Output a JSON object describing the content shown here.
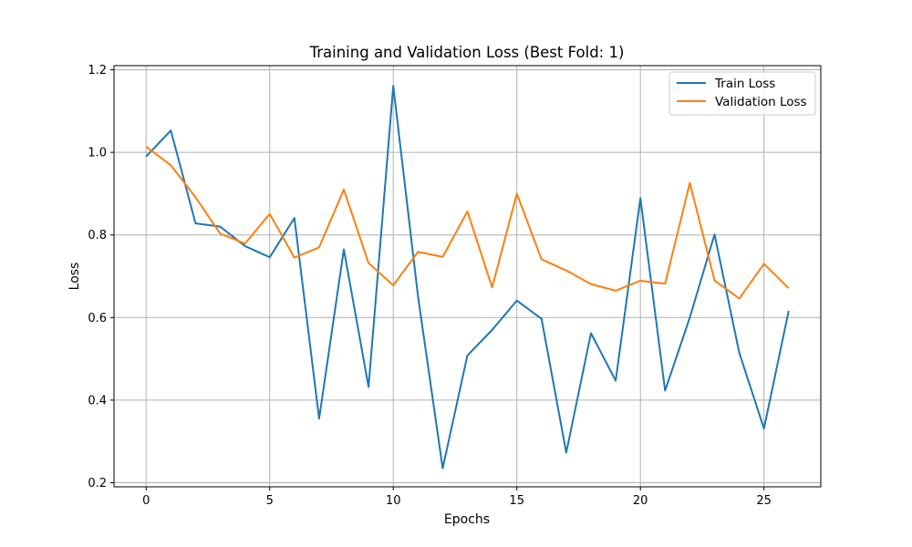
{
  "chart_data": {
    "type": "line",
    "title": "Training and Validation Loss (Best Fold: 1)",
    "xlabel": "Epochs",
    "ylabel": "Loss",
    "xlim": [
      -1.3,
      27.3
    ],
    "ylim": [
      0.19,
      1.21
    ],
    "xticks": [
      0,
      5,
      10,
      15,
      20,
      25
    ],
    "xtick_labels": [
      "0",
      "5",
      "10",
      "15",
      "20",
      "25"
    ],
    "yticks": [
      0.2,
      0.4,
      0.6,
      0.8,
      1.0,
      1.2
    ],
    "ytick_labels": [
      "0.2",
      "0.4",
      "0.6",
      "0.8",
      "1.0",
      "1.2"
    ],
    "grid": true,
    "legend_position": "top-right",
    "x": [
      0,
      1,
      2,
      3,
      4,
      5,
      6,
      7,
      8,
      9,
      10,
      11,
      12,
      13,
      14,
      15,
      16,
      17,
      18,
      19,
      20,
      21,
      22,
      23,
      24,
      25,
      26
    ],
    "series": [
      {
        "name": "Train Loss",
        "color": "#1f77b4",
        "values": [
          0.99,
          1.053,
          0.828,
          0.82,
          0.773,
          0.746,
          0.841,
          0.355,
          0.765,
          0.432,
          1.161,
          0.652,
          0.235,
          0.508,
          0.57,
          0.641,
          0.597,
          0.273,
          0.562,
          0.447,
          0.889,
          0.423,
          0.6,
          0.801,
          0.515,
          0.331,
          0.616
        ]
      },
      {
        "name": "Validation Loss",
        "color": "#ff7f0e",
        "values": [
          1.014,
          0.969,
          0.891,
          0.803,
          0.779,
          0.851,
          0.745,
          0.77,
          0.91,
          0.732,
          0.678,
          0.759,
          0.747,
          0.857,
          0.673,
          0.9,
          0.741,
          0.714,
          0.681,
          0.665,
          0.689,
          0.682,
          0.926,
          0.69,
          0.646,
          0.73,
          0.671
        ]
      }
    ]
  }
}
